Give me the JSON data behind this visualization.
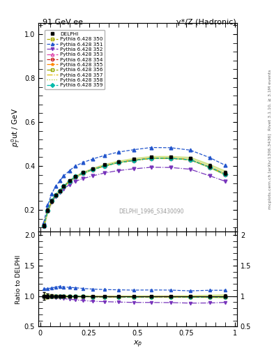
{
  "title_left": "91 GeV ee",
  "title_right": "γ*/Z (Hadronic)",
  "xlabel": "x_{p}",
  "ylabel_main": "p$^0_T$ut / GeV",
  "ylabel_ratio": "Ratio to DELPHI",
  "watermark": "DELPHI_1996_S3430090",
  "rivet_label": "Rivet 3.1.10, ≥ 3.1M events",
  "arxiv_label": "[arXiv:1306.3436]",
  "mcplots_label": "mcplots.cern.ch",
  "ylim_main": [
    0.1,
    1.05
  ],
  "ylim_ratio": [
    0.5,
    2.05
  ],
  "xp_data": [
    0.018,
    0.038,
    0.058,
    0.078,
    0.1,
    0.12,
    0.15,
    0.18,
    0.22,
    0.27,
    0.33,
    0.4,
    0.48,
    0.57,
    0.67,
    0.77,
    0.87,
    0.95
  ],
  "delphi_y": [
    0.128,
    0.198,
    0.24,
    0.268,
    0.287,
    0.308,
    0.332,
    0.352,
    0.37,
    0.388,
    0.405,
    0.42,
    0.432,
    0.44,
    0.44,
    0.435,
    0.4,
    0.368
  ],
  "delphi_err": [
    0.008,
    0.008,
    0.007,
    0.006,
    0.005,
    0.005,
    0.004,
    0.004,
    0.004,
    0.004,
    0.004,
    0.004,
    0.004,
    0.005,
    0.005,
    0.006,
    0.008,
    0.01
  ],
  "series": [
    {
      "label": "Pythia 6.428 350",
      "color": "#aaaa00",
      "linestyle": "--",
      "marker": "s",
      "fillstyle": "none",
      "y": [
        0.128,
        0.196,
        0.238,
        0.266,
        0.285,
        0.305,
        0.33,
        0.35,
        0.367,
        0.384,
        0.4,
        0.415,
        0.426,
        0.435,
        0.435,
        0.428,
        0.394,
        0.362
      ]
    },
    {
      "label": "Pythia 6.428 351",
      "color": "#2255cc",
      "linestyle": "--",
      "marker": "^",
      "fillstyle": "full",
      "y": [
        0.143,
        0.222,
        0.272,
        0.307,
        0.332,
        0.354,
        0.379,
        0.4,
        0.416,
        0.432,
        0.448,
        0.463,
        0.474,
        0.484,
        0.483,
        0.472,
        0.438,
        0.403
      ]
    },
    {
      "label": "Pythia 6.428 352",
      "color": "#7733bb",
      "linestyle": "-.",
      "marker": "v",
      "fillstyle": "full",
      "y": [
        0.128,
        0.194,
        0.235,
        0.261,
        0.278,
        0.295,
        0.315,
        0.33,
        0.343,
        0.355,
        0.368,
        0.379,
        0.387,
        0.394,
        0.393,
        0.385,
        0.355,
        0.33
      ]
    },
    {
      "label": "Pythia 6.428 353",
      "color": "#dd44aa",
      "linestyle": "-.",
      "marker": "^",
      "fillstyle": "none",
      "y": [
        0.128,
        0.197,
        0.24,
        0.268,
        0.287,
        0.308,
        0.332,
        0.352,
        0.369,
        0.385,
        0.401,
        0.416,
        0.426,
        0.436,
        0.436,
        0.429,
        0.395,
        0.363
      ]
    },
    {
      "label": "Pythia 6.428 354",
      "color": "#cc2222",
      "linestyle": "--",
      "marker": "o",
      "fillstyle": "none",
      "y": [
        0.128,
        0.197,
        0.24,
        0.268,
        0.287,
        0.307,
        0.331,
        0.351,
        0.368,
        0.384,
        0.4,
        0.415,
        0.425,
        0.435,
        0.435,
        0.428,
        0.394,
        0.362
      ]
    },
    {
      "label": "Pythia 6.428 355",
      "color": "#ff8800",
      "linestyle": "-.",
      "marker": "*",
      "fillstyle": "full",
      "y": [
        0.128,
        0.197,
        0.24,
        0.268,
        0.287,
        0.307,
        0.331,
        0.351,
        0.368,
        0.384,
        0.4,
        0.415,
        0.425,
        0.435,
        0.435,
        0.428,
        0.394,
        0.362
      ]
    },
    {
      "label": "Pythia 6.428 356",
      "color": "#99aa00",
      "linestyle": "-.",
      "marker": "s",
      "fillstyle": "none",
      "y": [
        0.128,
        0.197,
        0.24,
        0.268,
        0.287,
        0.307,
        0.331,
        0.351,
        0.368,
        0.384,
        0.4,
        0.415,
        0.425,
        0.435,
        0.435,
        0.428,
        0.394,
        0.362
      ]
    },
    {
      "label": "Pythia 6.428 357",
      "color": "#ddbb00",
      "linestyle": "-.",
      "marker": null,
      "fillstyle": "full",
      "y": [
        0.128,
        0.197,
        0.24,
        0.268,
        0.287,
        0.307,
        0.331,
        0.351,
        0.368,
        0.384,
        0.4,
        0.415,
        0.425,
        0.435,
        0.435,
        0.428,
        0.394,
        0.362
      ]
    },
    {
      "label": "Pythia 6.428 358",
      "color": "#aacc22",
      "linestyle": ":",
      "marker": null,
      "fillstyle": "full",
      "y": [
        0.128,
        0.197,
        0.24,
        0.268,
        0.287,
        0.307,
        0.331,
        0.351,
        0.368,
        0.384,
        0.4,
        0.415,
        0.425,
        0.435,
        0.435,
        0.428,
        0.394,
        0.362
      ]
    },
    {
      "label": "Pythia 6.428 359",
      "color": "#00bbaa",
      "linestyle": "--",
      "marker": "D",
      "fillstyle": "full",
      "y": [
        0.128,
        0.197,
        0.24,
        0.268,
        0.287,
        0.307,
        0.331,
        0.351,
        0.368,
        0.384,
        0.4,
        0.415,
        0.425,
        0.435,
        0.435,
        0.428,
        0.394,
        0.362
      ]
    }
  ],
  "band_color": "#aacc22",
  "band_alpha": 0.4
}
